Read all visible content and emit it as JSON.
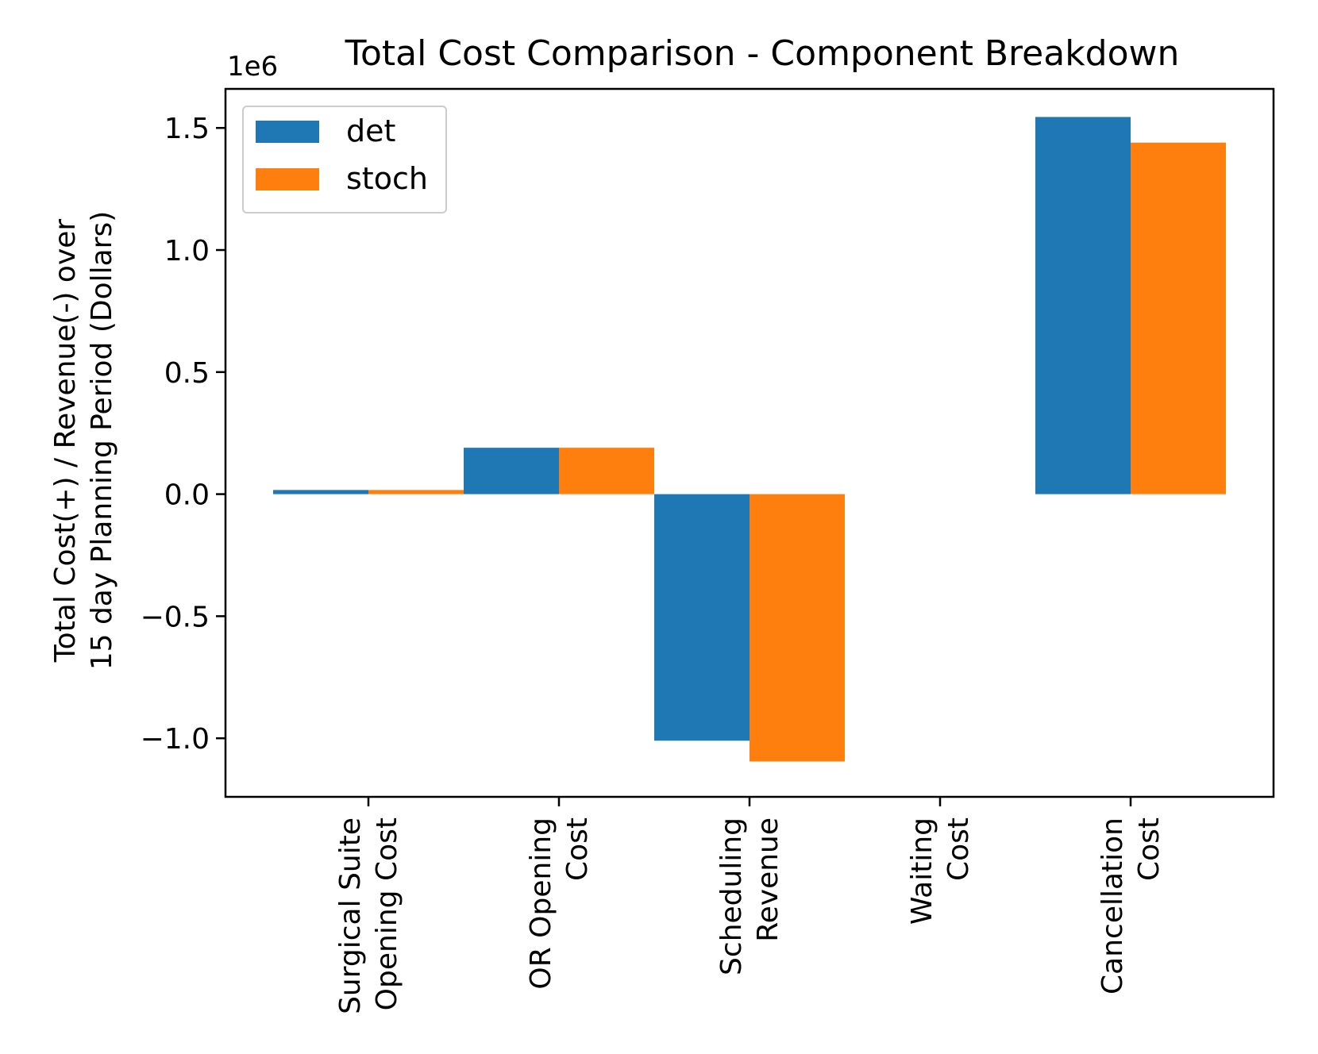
{
  "chart_data": {
    "type": "bar",
    "title": "Total Cost Comparison - Component Breakdown",
    "ylabel_lines": [
      "Total Cost(+) / Revenue(-) over",
      "15 day Planning Period (Dollars)"
    ],
    "y_offset_label": "1e6",
    "ylim": [
      -1.24,
      1.66
    ],
    "yticks": [
      -1.0,
      -0.5,
      0.0,
      0.5,
      1.0,
      1.5
    ],
    "ytick_labels": [
      "−1.0",
      "−0.5",
      "0.0",
      "0.5",
      "1.0",
      "1.5"
    ],
    "categories": [
      [
        "Surgical Suite",
        "Opening Cost"
      ],
      [
        "OR Opening",
        "Cost"
      ],
      [
        "Scheduling",
        "Revenue"
      ],
      [
        "Waiting",
        "Cost"
      ],
      [
        "Cancellation",
        "Cost"
      ]
    ],
    "series": [
      {
        "name": "det",
        "color": "#1f77b4",
        "values": [
          0.017,
          0.19,
          -1.01,
          0.0,
          1.545
        ]
      },
      {
        "name": "stoch",
        "color": "#ff7f0e",
        "values": [
          0.017,
          0.19,
          -1.095,
          0.0,
          1.44
        ]
      }
    ],
    "legend_position": "upper-left",
    "grid": false
  }
}
